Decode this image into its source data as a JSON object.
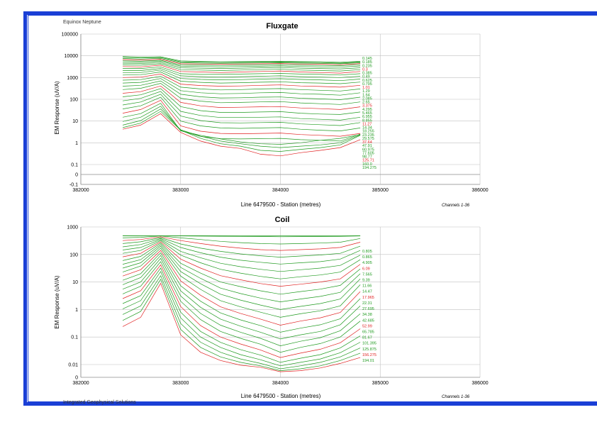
{
  "header": {
    "left": "Equinox  Neptune"
  },
  "footer": {
    "left": "Integrated Geophysical Solutions"
  },
  "colors": {
    "frame": "#1a3fd6",
    "green": "#1f9a1f",
    "red": "#e02020",
    "grid": "#c0c0c0"
  },
  "chart_data": [
    {
      "type": "line",
      "title": "Fluxgate",
      "xlabel": "Line 6479500  -   Station (metres)",
      "ylabel": "EM Response (uV/A)",
      "note": "Channels 1-36",
      "xlim": [
        382000,
        386000
      ],
      "x_ticks": [
        "382000",
        "383000",
        "384000",
        "385000",
        "386000"
      ],
      "y_ticks": [
        "100000",
        "10000",
        "1000",
        "100",
        "10",
        "1",
        "0.1",
        "0",
        "-0.1"
      ],
      "yscale": "log-with-linear-zero",
      "x": [
        382420,
        382600,
        382800,
        383000,
        383200,
        383400,
        383600,
        383800,
        384000,
        384200,
        384400,
        384600,
        384800
      ],
      "series": [
        {
          "values": [
            9300,
            8700,
            9000,
            5800,
            5500,
            5300,
            5400,
            5500,
            5600,
            5400,
            5300,
            5000,
            5600
          ]
        },
        {
          "values": [
            8400,
            7900,
            8300,
            5300,
            5100,
            4900,
            5000,
            5100,
            5200,
            5000,
            4900,
            4600,
            5200
          ]
        },
        {
          "values": [
            7500,
            7100,
            7600,
            4800,
            4600,
            4500,
            4600,
            4700,
            4800,
            4600,
            4500,
            4300,
            4800
          ]
        },
        {
          "values": [
            6700,
            6400,
            6900,
            4300,
            4200,
            4100,
            4200,
            4300,
            4400,
            4200,
            4100,
            3900,
            4400
          ]
        },
        {
          "values": [
            5900,
            5700,
            6200,
            3800,
            3700,
            3600,
            3700,
            3800,
            3900,
            3700,
            3600,
            3500,
            3900
          ]
        },
        {
          "values": [
            5200,
            5100,
            5600,
            3300,
            3200,
            3100,
            3200,
            3300,
            3400,
            3200,
            3100,
            3000,
            3400
          ]
        },
        {
          "values": [
            4500,
            4400,
            4900,
            2800,
            2700,
            2600,
            2700,
            2800,
            2900,
            2700,
            2600,
            2500,
            2800
          ]
        },
        {
          "values": [
            3800,
            3700,
            4300,
            2300,
            2200,
            2100,
            2200,
            2300,
            2400,
            2200,
            2100,
            2000,
            2300
          ]
        },
        {
          "values": [
            3200,
            3100,
            3700,
            1900,
            1800,
            1700,
            1800,
            1900,
            2000,
            1800,
            1700,
            1600,
            1900
          ]
        },
        {
          "values": [
            2600,
            2600,
            3100,
            1500,
            1400,
            1400,
            1450,
            1500,
            1550,
            1450,
            1400,
            1300,
            1500
          ]
        },
        {
          "values": [
            2100,
            2100,
            2600,
            1200,
            1100,
            1050,
            1100,
            1150,
            1200,
            1100,
            1050,
            1000,
            1150
          ]
        },
        {
          "values": [
            1700,
            1700,
            2200,
            900,
            820,
            780,
            800,
            850,
            880,
            820,
            780,
            720,
            850
          ]
        },
        {
          "values": [
            1300,
            1350,
            1800,
            680,
            600,
            560,
            580,
            610,
            640,
            580,
            560,
            520,
            620
          ]
        },
        {
          "values": [
            1000,
            1050,
            1450,
            500,
            430,
            400,
            410,
            440,
            460,
            410,
            390,
            360,
            440
          ]
        },
        {
          "values": [
            760,
            800,
            1150,
            360,
            300,
            270,
            280,
            300,
            310,
            280,
            260,
            240,
            300
          ]
        },
        {
          "values": [
            560,
            600,
            900,
            250,
            200,
            180,
            185,
            200,
            205,
            180,
            170,
            155,
            200
          ]
        },
        {
          "values": [
            400,
            440,
            700,
            170,
            130,
            115,
            118,
            125,
            128,
            112,
            105,
            96,
            125
          ]
        },
        {
          "values": [
            280,
            320,
            540,
            112,
            82,
            70,
            72,
            76,
            78,
            68,
            63,
            58,
            76
          ]
        },
        {
          "values": [
            190,
            225,
            410,
            72,
            50,
            42,
            43,
            45,
            46,
            40,
            37,
            34,
            45
          ]
        },
        {
          "values": [
            130,
            160,
            310,
            46,
            30,
            25,
            25,
            26,
            27,
            23,
            21,
            20,
            26
          ]
        },
        {
          "values": [
            85,
            110,
            230,
            28,
            18,
            14.5,
            14.5,
            15,
            15.5,
            13,
            12,
            11,
            15
          ]
        },
        {
          "values": [
            55,
            75,
            170,
            17,
            10.5,
            8.4,
            8.2,
            8.5,
            8.8,
            7.4,
            6.8,
            6.2,
            8.5
          ]
        },
        {
          "values": [
            36,
            50,
            125,
            10,
            6.0,
            4.8,
            4.6,
            4.8,
            5.0,
            4.2,
            3.8,
            3.5,
            4.8
          ]
        },
        {
          "values": [
            23,
            34,
            90,
            6.0,
            3.4,
            2.7,
            2.6,
            2.7,
            2.8,
            2.4,
            2.2,
            2.0,
            2.7
          ]
        },
        {
          "values": [
            15,
            22,
            65,
            3.6,
            1.95,
            1.55,
            1.5,
            1.55,
            1.6,
            1.4,
            1.3,
            1.2,
            2.5
          ]
        },
        {
          "values": [
            9.5,
            15,
            48,
            3.6,
            2.2,
            1.5,
            1.1,
            0.9,
            0.85,
            1.0,
            1.3,
            1.6,
            2.4
          ]
        },
        {
          "values": [
            6.5,
            10.5,
            36,
            4.0,
            2.0,
            1.2,
            0.9,
            0.7,
            0.6,
            0.7,
            0.8,
            1.0,
            2.3
          ]
        },
        {
          "values": [
            5.0,
            8.0,
            28,
            3.8,
            1.6,
            0.9,
            0.7,
            0.45,
            0.4,
            0.5,
            0.6,
            0.8,
            2.2
          ]
        },
        {
          "values": [
            4.2,
            6.5,
            22,
            3.0,
            1.2,
            0.7,
            0.55,
            0.3,
            0.25,
            0.35,
            0.45,
            0.6,
            1.4
          ]
        }
      ],
      "channel_labels": [
        "0.145",
        "0.185",
        "0.235",
        "0.3",
        "0.385",
        "0.49",
        "0.625",
        "0.795",
        "1.01",
        "1.29",
        "1.64",
        "2.085",
        "2.65",
        "3.375",
        "4.295",
        "5.465",
        "6.955",
        "8.855",
        "11.27",
        "14.34",
        "18.255",
        "23.235",
        "29.575",
        "37.64",
        "47.91",
        "60.975",
        "77.605",
        "98.77",
        "125.71",
        "160.0",
        "194.275"
      ]
    },
    {
      "type": "line",
      "title": "Coil",
      "xlabel": "Line 6479500  -   Station (metres)",
      "ylabel": "EM Response (uV/A)",
      "note": "Channels 1-36",
      "xlim": [
        382000,
        386000
      ],
      "x_ticks": [
        "382000",
        "383000",
        "384000",
        "385000",
        "386000"
      ],
      "y_ticks": [
        "1000",
        "100",
        "10",
        "1",
        "0.1",
        "0.01",
        "0"
      ],
      "yscale": "log-with-linear-zero",
      "x": [
        382420,
        382600,
        382800,
        383000,
        383200,
        383400,
        383600,
        383800,
        384000,
        384200,
        384400,
        384600,
        384800
      ],
      "series": [
        {
          "values": [
            480,
            480,
            480,
            480,
            480,
            480,
            480,
            480,
            480,
            480,
            480,
            480,
            480
          ]
        },
        {
          "values": [
            470,
            475,
            480,
            470,
            465,
            460,
            455,
            450,
            440,
            445,
            450,
            455,
            470
          ]
        },
        {
          "values": [
            400,
            420,
            470,
            400,
            350,
            300,
            270,
            250,
            240,
            250,
            260,
            280,
            380
          ]
        },
        {
          "values": [
            320,
            350,
            440,
            320,
            250,
            200,
            170,
            150,
            140,
            150,
            160,
            180,
            280
          ]
        },
        {
          "values": [
            250,
            290,
            410,
            240,
            170,
            130,
            105,
            90,
            80,
            88,
            96,
            110,
            200
          ]
        },
        {
          "values": [
            190,
            230,
            380,
            180,
            115,
            80,
            62,
            52,
            45,
            50,
            55,
            68,
            140
          ]
        },
        {
          "values": [
            145,
            180,
            350,
            130,
            76,
            48,
            36,
            29,
            24,
            28,
            32,
            40,
            95
          ]
        },
        {
          "values": [
            110,
            140,
            320,
            95,
            50,
            29,
            21,
            16,
            13,
            15.5,
            18,
            23,
            65
          ]
        },
        {
          "values": [
            82,
            110,
            290,
            68,
            32,
            17,
            12,
            8.8,
            7.0,
            8.3,
            10,
            13,
            44
          ]
        },
        {
          "values": [
            60,
            85,
            260,
            48,
            21,
            10,
            6.8,
            4.8,
            3.6,
            4.5,
            5.5,
            7.5,
            30
          ]
        },
        {
          "values": [
            44,
            65,
            230,
            34,
            13.5,
            6.0,
            3.8,
            2.6,
            1.9,
            2.4,
            3.0,
            4.2,
            20
          ]
        },
        {
          "values": [
            32,
            50,
            200,
            24,
            8.6,
            3.6,
            2.2,
            1.45,
            1.0,
            1.3,
            1.65,
            2.4,
            13
          ]
        },
        {
          "values": [
            23,
            38,
            170,
            16.5,
            5.4,
            2.1,
            1.25,
            0.8,
            0.52,
            0.7,
            0.9,
            1.35,
            8
          ]
        },
        {
          "values": [
            16.5,
            28,
            140,
            11,
            3.3,
            1.25,
            0.72,
            0.45,
            0.27,
            0.38,
            0.5,
            0.78,
            4.5
          ]
        },
        {
          "values": [
            11.5,
            20,
            115,
            7.3,
            2.0,
            0.75,
            0.42,
            0.26,
            0.15,
            0.21,
            0.28,
            0.46,
            2.5
          ]
        },
        {
          "values": [
            8.0,
            14.5,
            92,
            4.8,
            1.2,
            0.45,
            0.25,
            0.15,
            0.085,
            0.12,
            0.16,
            0.28,
            1.35
          ]
        },
        {
          "values": [
            5.5,
            10,
            72,
            3.1,
            0.72,
            0.27,
            0.15,
            0.09,
            0.048,
            0.07,
            0.095,
            0.17,
            0.7
          ]
        },
        {
          "values": [
            3.7,
            7,
            55,
            2.0,
            0.43,
            0.16,
            0.09,
            0.055,
            0.028,
            0.042,
            0.058,
            0.1,
            0.38
          ]
        },
        {
          "values": [
            2.5,
            4.8,
            42,
            1.28,
            0.26,
            0.1,
            0.056,
            0.034,
            0.018,
            0.026,
            0.036,
            0.062,
            0.2
          ]
        },
        {
          "values": [
            1.65,
            3.2,
            32,
            0.8,
            0.16,
            0.064,
            0.035,
            0.022,
            0.012,
            0.017,
            0.023,
            0.04,
            0.11
          ]
        },
        {
          "values": [
            1.05,
            2.1,
            24,
            0.5,
            0.1,
            0.042,
            0.023,
            0.015,
            0.009,
            0.012,
            0.016,
            0.027,
            0.065
          ]
        },
        {
          "values": [
            0.66,
            1.35,
            17,
            0.31,
            0.065,
            0.028,
            0.016,
            0.011,
            0.007,
            0.009,
            0.012,
            0.019,
            0.04
          ]
        },
        {
          "values": [
            0.4,
            0.85,
            12.5,
            0.19,
            0.042,
            0.019,
            0.012,
            0.009,
            0.006,
            0.007,
            0.009,
            0.014,
            0.026
          ]
        },
        {
          "values": [
            0.24,
            0.52,
            9,
            0.12,
            0.028,
            0.014,
            0.0095,
            0.008,
            0.0055,
            0.006,
            0.0075,
            0.011,
            0.018
          ]
        }
      ],
      "channel_labels": [
        "0.805",
        "0.865",
        "4.905",
        "6.09",
        "7.565",
        "9.39",
        "11.66",
        "14.47",
        "17.965",
        "22.31",
        "27.695",
        "34.38",
        "42.685",
        "52.99",
        "65.785",
        "81.67",
        "101.395",
        "125.875",
        "156.275",
        "194.01"
      ]
    }
  ]
}
